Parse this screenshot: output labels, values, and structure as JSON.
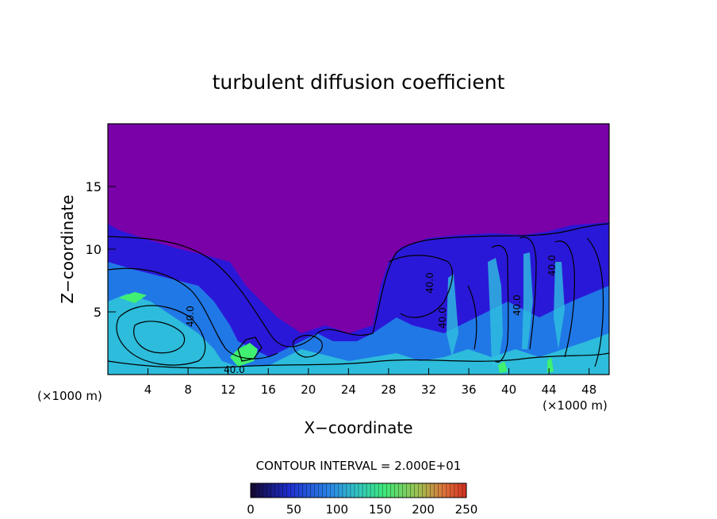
{
  "chart_data": {
    "type": "heatmap",
    "title": "turbulent diffusion coefficient",
    "xlabel": "X−coordinate",
    "ylabel": "Z−coordinate",
    "x_unit_left": "(×1000 m)",
    "x_unit_right": "(×1000 m)",
    "xlim": [
      0,
      50
    ],
    "ylim": [
      0,
      20
    ],
    "x_ticks": [
      4,
      8,
      12,
      16,
      20,
      24,
      28,
      32,
      36,
      40,
      44,
      48
    ],
    "y_ticks": [
      5,
      10,
      15
    ],
    "contour_interval_text": "CONTOUR INTERVAL = 2.000E+01",
    "contour_labels": [
      "40.0",
      "40.0",
      "40.0",
      "40.0",
      "40.0",
      "40.0"
    ],
    "colorbar": {
      "range": [
        0,
        250
      ],
      "ticks": [
        0,
        50,
        100,
        150,
        200,
        250
      ],
      "colors": [
        "#1a0a3a",
        "#1e2fd0",
        "#2c8ce6",
        "#32d8c8",
        "#3ee87a",
        "#b0e060",
        "#e8a040",
        "#d03020"
      ]
    },
    "colors": {
      "background_field": "#7a00a8",
      "low": "#2a10c0",
      "mid": "#1a8ce6",
      "high": "#30e0c8",
      "peak": "#40f070"
    }
  }
}
